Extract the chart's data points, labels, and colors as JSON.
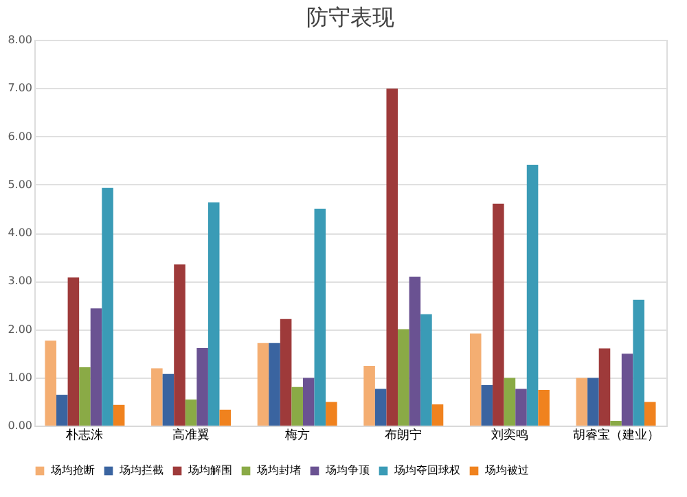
{
  "chart_data": {
    "type": "bar",
    "title": "防守表现",
    "categories": [
      "朴志洙",
      "高准翼",
      "梅方",
      "布朗宁",
      "刘奕鸣",
      "胡睿宝（建业）"
    ],
    "series": [
      {
        "name": "场均抢断",
        "color": "#f4ae72",
        "values": [
          1.76,
          1.19,
          1.71,
          1.24,
          1.91,
          0.99
        ]
      },
      {
        "name": "场均拦截",
        "color": "#3a64a0",
        "values": [
          0.64,
          1.07,
          1.71,
          0.76,
          0.84,
          0.99
        ]
      },
      {
        "name": "场均解围",
        "color": "#9e3a3a",
        "values": [
          3.07,
          3.34,
          2.21,
          6.99,
          4.6,
          1.6
        ]
      },
      {
        "name": "场均封堵",
        "color": "#8aaa46",
        "values": [
          1.21,
          0.54,
          0.8,
          2.0,
          0.99,
          0.1
        ]
      },
      {
        "name": "场均争顶",
        "color": "#6a5292",
        "values": [
          2.43,
          1.61,
          0.99,
          3.09,
          0.76,
          1.49
        ]
      },
      {
        "name": "场均夺回球权",
        "color": "#3a9bb6",
        "values": [
          4.93,
          4.63,
          4.5,
          2.31,
          5.41,
          2.61
        ]
      },
      {
        "name": "场均被过",
        "color": "#f0821e",
        "values": [
          0.43,
          0.33,
          0.49,
          0.44,
          0.74,
          0.49
        ]
      }
    ],
    "ylim": [
      0,
      8
    ],
    "yticks": [
      {
        "value": 0,
        "label": "0.00"
      },
      {
        "value": 1,
        "label": "1.00"
      },
      {
        "value": 2,
        "label": "2.00"
      },
      {
        "value": 3,
        "label": "3.00"
      },
      {
        "value": 4,
        "label": "4.00"
      },
      {
        "value": 5,
        "label": "5.00"
      },
      {
        "value": 6,
        "label": "6.00"
      },
      {
        "value": 7,
        "label": "7.00"
      },
      {
        "value": 8,
        "label": "8.00"
      }
    ],
    "grid": "y",
    "legend": "bottom"
  }
}
